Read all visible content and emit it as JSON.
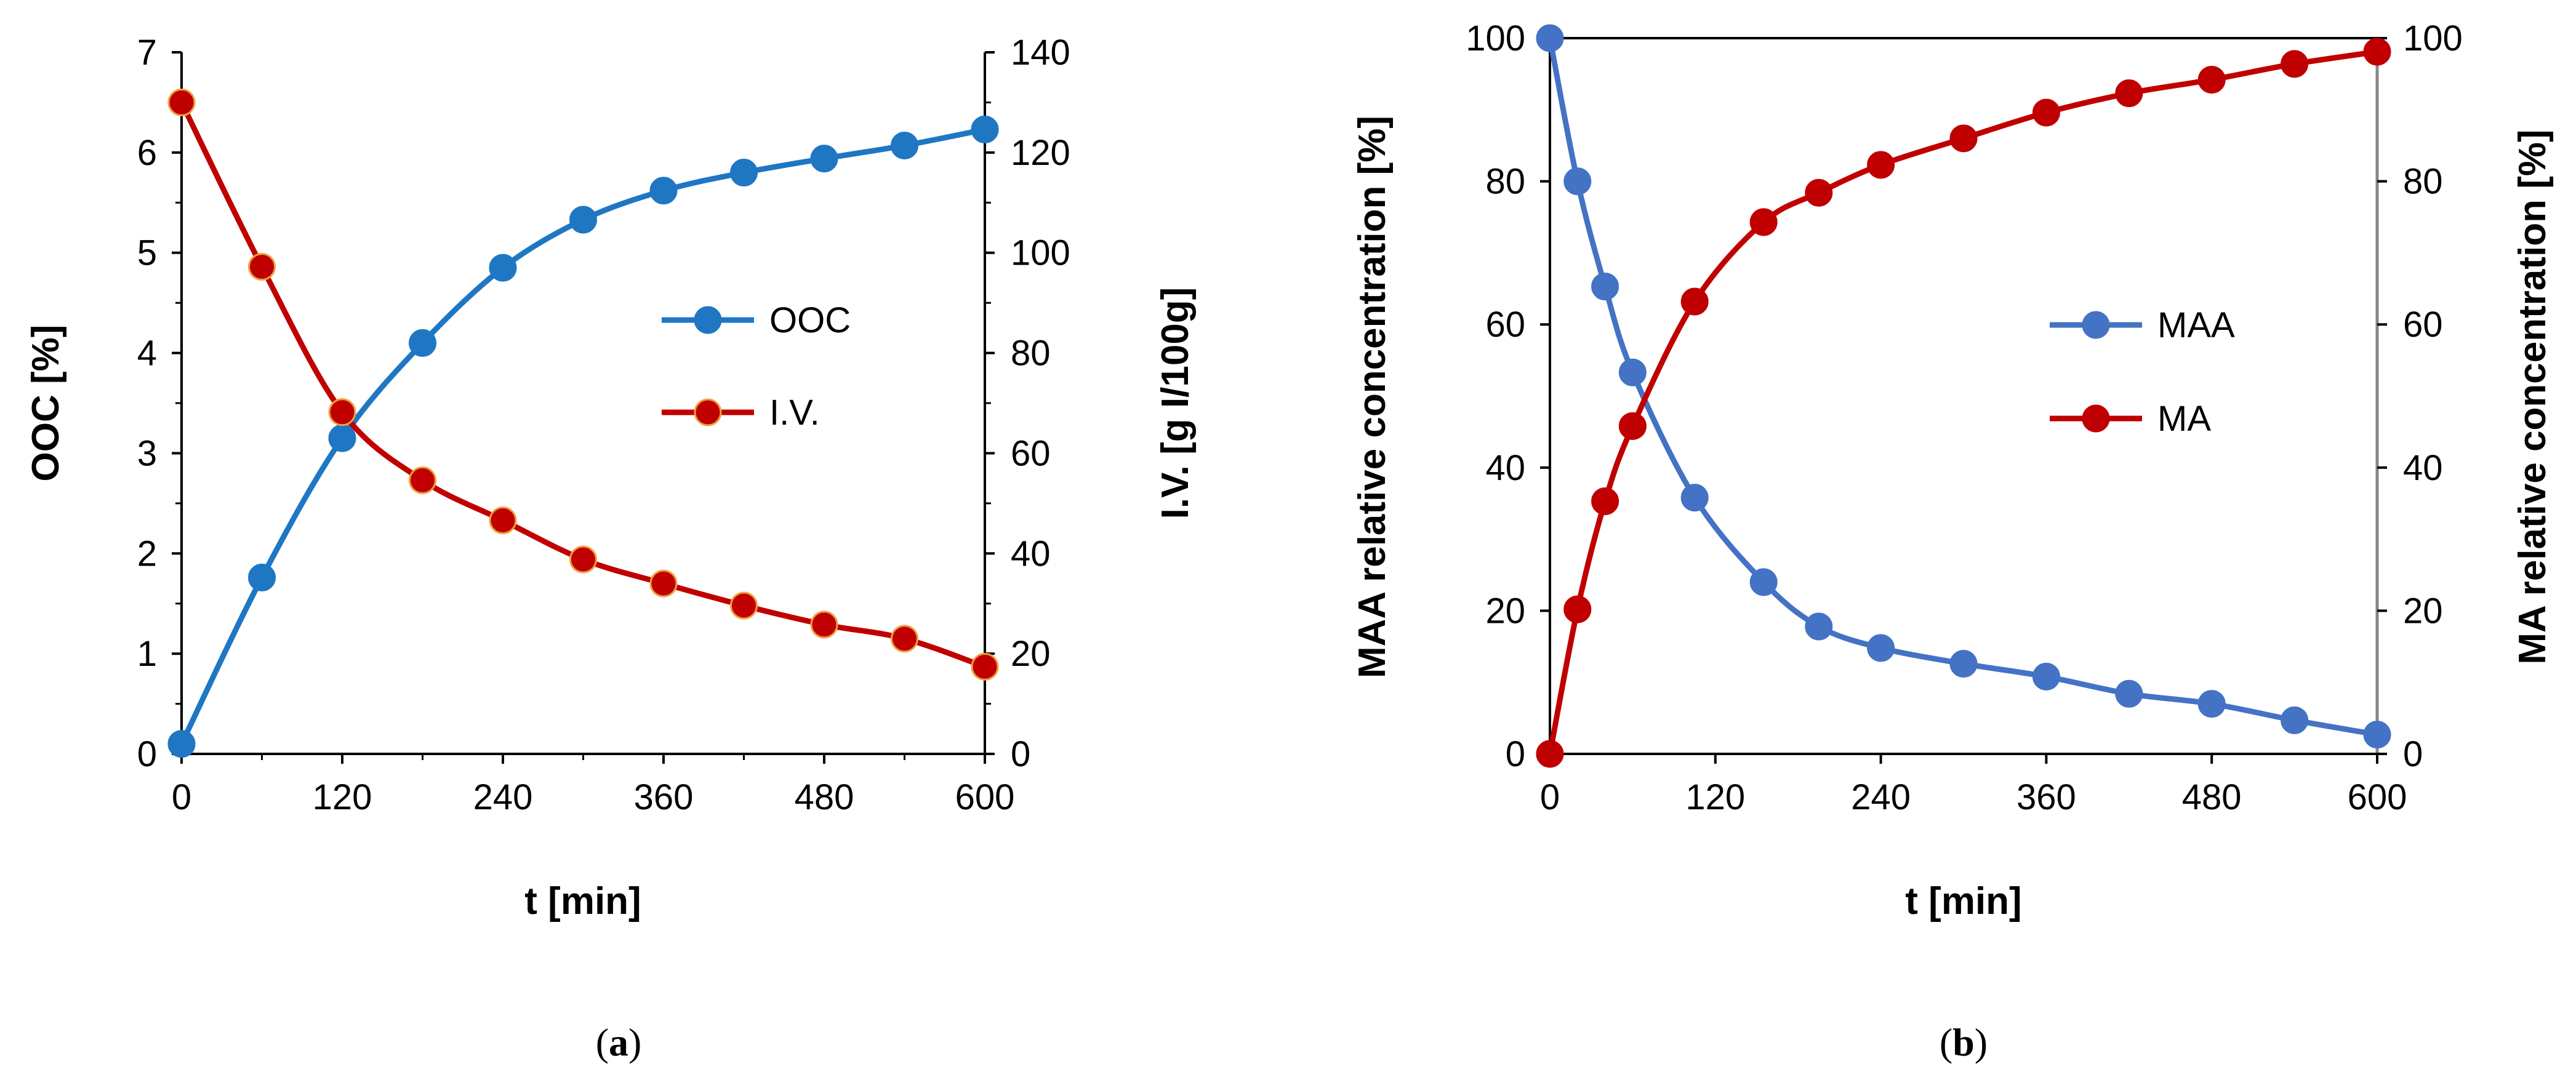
{
  "chart_data": [
    {
      "id": "a",
      "type": "line",
      "caption_letter": "a",
      "x": [
        0,
        60,
        120,
        180,
        240,
        300,
        360,
        420,
        480,
        540,
        600
      ],
      "xlabel": "t [min]",
      "xlim": [
        0,
        600
      ],
      "xticks": [
        "0",
        "120",
        "240",
        "360",
        "480",
        "600"
      ],
      "ylabel": "OOC [%]",
      "ylim": [
        0,
        7
      ],
      "yticks": [
        "0",
        "1",
        "2",
        "3",
        "4",
        "5",
        "6",
        "7"
      ],
      "y2label": "I.V. [g I/100g]",
      "y2lim": [
        0,
        140
      ],
      "y2ticks": [
        "0",
        "20",
        "40",
        "60",
        "80",
        "100",
        "120",
        "140"
      ],
      "legend_position": "center-right",
      "series": [
        {
          "name": "OOC",
          "axis": "left",
          "color": "#1f77c4",
          "marker_edge": "#1f77c4",
          "values": [
            0.1,
            1.76,
            3.15,
            4.1,
            4.85,
            5.33,
            5.62,
            5.8,
            5.94,
            6.07,
            6.23
          ]
        },
        {
          "name": "I.V.",
          "axis": "right",
          "color": "#c00000",
          "marker_edge": "#f0a040",
          "values": [
            130,
            97.2,
            68.2,
            54.6,
            46.6,
            38.8,
            34,
            29.6,
            25.8,
            23,
            17.4
          ]
        }
      ]
    },
    {
      "id": "b",
      "type": "line",
      "caption_letter": "b",
      "xlabel": "t [min]",
      "xlim": [
        0,
        600
      ],
      "xticks": [
        "0",
        "120",
        "240",
        "360",
        "480",
        "600"
      ],
      "ylabel": "MAA relative concentration [%]",
      "ylim": [
        0,
        100
      ],
      "yticks": [
        "0",
        "20",
        "40",
        "60",
        "80",
        "100"
      ],
      "y2label": "MA relative concentration [%]",
      "y2lim": [
        0,
        100
      ],
      "y2ticks": [
        "0",
        "20",
        "40",
        "60",
        "80",
        "100"
      ],
      "legend_position": "center-right",
      "series": [
        {
          "name": "MAA",
          "axis": "left",
          "color": "#4472c4",
          "marker_edge": "#4472c4",
          "x": [
            0,
            20,
            40,
            60,
            105,
            155,
            195,
            240,
            300,
            360,
            420,
            480,
            540,
            600
          ],
          "values": [
            100,
            80,
            65.3,
            53.3,
            35.8,
            24,
            17.8,
            14.8,
            12.6,
            10.8,
            8.4,
            7,
            4.7,
            2.7
          ]
        },
        {
          "name": "MA",
          "axis": "right",
          "color": "#c00000",
          "marker_edge": "#c00000",
          "x": [
            0,
            20,
            40,
            60,
            105,
            155,
            195,
            240,
            300,
            360,
            420,
            480,
            540,
            600
          ],
          "values": [
            0,
            20.2,
            35.3,
            45.8,
            63.2,
            74.3,
            78.4,
            82.3,
            86,
            89.6,
            92.3,
            94.2,
            96.4,
            98.1
          ]
        }
      ]
    }
  ]
}
